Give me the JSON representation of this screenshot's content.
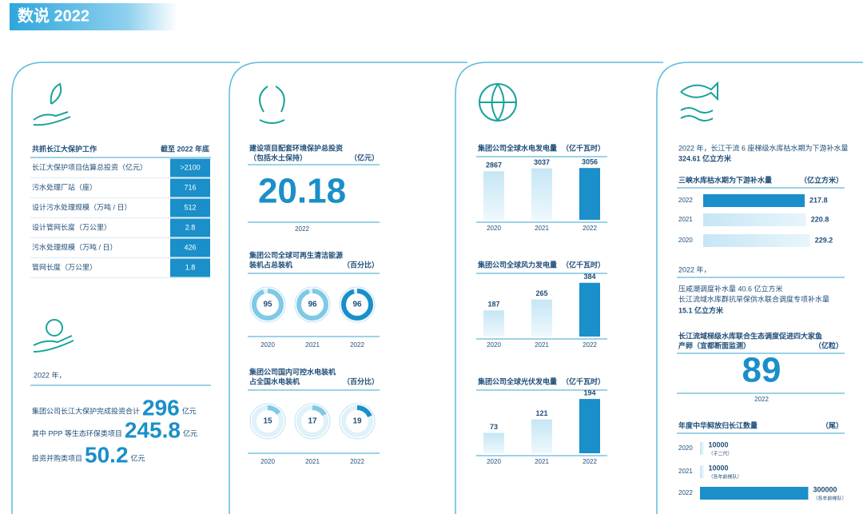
{
  "header": {
    "title": "数说 2022"
  },
  "panel1": {
    "table": {
      "title": "共抓长江大保护工作",
      "unit": "截至 2022 年底",
      "rows": [
        [
          "长江大保护项目估算总投资（亿元）",
          ">2100"
        ],
        [
          "污水处理厂站（座）",
          "716"
        ],
        [
          "设计污水处理规模（万吨 / 日）",
          "512"
        ],
        [
          "设计管网长度（万公里）",
          "2.8"
        ],
        [
          "污水处理规模（万吨 / 日）",
          "426"
        ],
        [
          "管网长度（万公里）",
          "1.8"
        ]
      ]
    },
    "summary": {
      "intro": "2022 年，",
      "lines": [
        {
          "pre": "集团公司长江大保护完成投资合计",
          "value": "296",
          "unit": "亿元"
        },
        {
          "pre": "其中 PPP 等生态环保类项目",
          "value": "245.8",
          "unit": "亿元"
        },
        {
          "pre": "投资并购类项目",
          "value": "50.2",
          "unit": "亿元"
        }
      ]
    }
  },
  "panel2": {
    "investment": {
      "title": [
        "建设项目配套环境保护总投资",
        "（包括水土保持）"
      ],
      "unit": "（亿元）",
      "value": "20.18",
      "year": "2022"
    },
    "clean_energy": {
      "title": [
        "集团公司全球可再生清洁能源",
        "装机占总装机"
      ],
      "unit": "（百分比）",
      "categories": [
        "2020",
        "2021",
        "2022"
      ],
      "values": [
        95,
        96,
        96
      ]
    },
    "hydro_share": {
      "title": [
        "集团公司国内可控水电装机",
        "占全国水电装机"
      ],
      "unit": "（百分比）",
      "categories": [
        "2020",
        "2021",
        "2022"
      ],
      "values": [
        15,
        17,
        19
      ]
    }
  },
  "panel3": {
    "charts": [
      {
        "type": "bar",
        "title": "集团公司全球水电发电量",
        "unit": "（亿千瓦时）",
        "categories": [
          "2020",
          "2021",
          "2022"
        ],
        "values": [
          2867,
          3037,
          3056
        ],
        "ylim": [
          0,
          3300
        ]
      },
      {
        "type": "bar",
        "title": "集团公司全球风力发电量",
        "unit": "（亿千瓦时）",
        "categories": [
          "2020",
          "2021",
          "2022"
        ],
        "values": [
          187,
          265,
          384
        ],
        "ylim": [
          0,
          400
        ]
      },
      {
        "type": "bar",
        "title": "集团公司全球光伏发电量",
        "unit": "（亿千瓦时）",
        "categories": [
          "2020",
          "2021",
          "2022"
        ],
        "values": [
          73,
          121,
          194
        ],
        "ylim": [
          0,
          200
        ]
      }
    ]
  },
  "panel4": {
    "intro": [
      "2022 年，长江干流 6 座梯级水库枯水期为下游补水量",
      "324.61 亿立方米"
    ],
    "three_gorges": {
      "type": "hbar",
      "title": "三峡水库枯水期为下游补水量",
      "unit": "（亿立方米）",
      "categories": [
        "2022",
        "2021",
        "2020"
      ],
      "values": [
        217.8,
        220.8,
        229.2
      ],
      "xlim": [
        0,
        240
      ]
    },
    "note": [
      "2022 年，",
      "压咸潮调度补水量 40.6 亿立方米",
      "长江流域水库群抗旱保供水联合调度专项补水量",
      "15.1 亿立方米"
    ],
    "fish_eggs": {
      "title": [
        "长江流域梯级水库联合生态调度促进四大家鱼",
        "产卵（宜都断面监测）"
      ],
      "unit": "（亿粒）",
      "value": "89",
      "year": "2022"
    },
    "sturgeon": {
      "type": "hbar",
      "title": "年度中华鲟放归长江数量",
      "unit": "（尾）",
      "categories": [
        "2020",
        "2021",
        "2022"
      ],
      "values": [
        10000,
        10000,
        300000
      ],
      "notes": [
        "（子二代）",
        "（各年龄梯队）",
        "（各年龄梯队）"
      ],
      "xlim": [
        0,
        310000
      ]
    }
  }
}
